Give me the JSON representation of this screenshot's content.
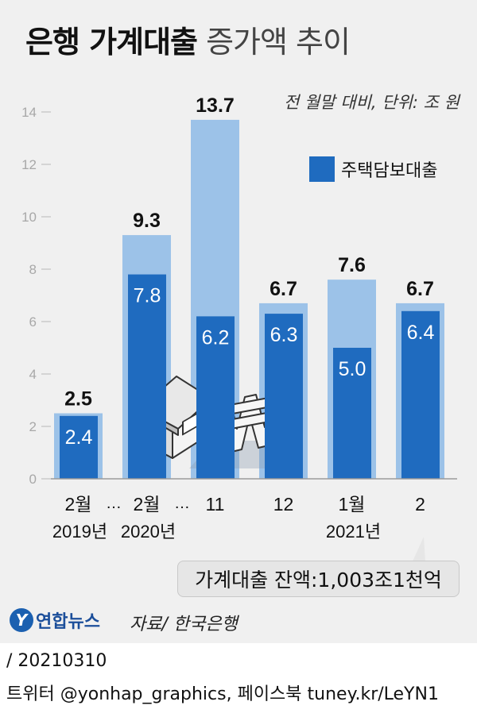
{
  "header": {
    "title_bold": "은행 가계대출",
    "title_light": "증가액 추이"
  },
  "unit_note": "전 월말 대비, 단위: 조 원",
  "legend": {
    "label": "주택담보대출"
  },
  "balance_note": "가계대출 잔액:1,003조1천억",
  "logo": {
    "mark": "Y",
    "text": "연합뉴스"
  },
  "source": "자료/ 한국은행",
  "footer": {
    "date_line": "/ 20210310",
    "social_line": "트위터 @yonhap_graphics, 페이스북 tuney.kr/LeYN1"
  },
  "colors": {
    "total": "#9cc2e8",
    "mortgage": "#1f6bbf",
    "panel": "#f0f0f0"
  },
  "chart_data": {
    "type": "bar",
    "categories": [
      "2월 2019년",
      "2월 2020년",
      "11",
      "12",
      "1월 2021년",
      "2"
    ],
    "category_lines": [
      [
        "2월",
        "2019년"
      ],
      [
        "2월",
        "2020년"
      ],
      [
        "11",
        ""
      ],
      [
        "12",
        ""
      ],
      [
        "1월",
        "2021년"
      ],
      [
        "2",
        ""
      ]
    ],
    "break_marks": [
      "…",
      "…"
    ],
    "series": [
      {
        "values": [
          2.5,
          9.3,
          13.7,
          6.7,
          7.6,
          6.7
        ]
      },
      {
        "name": "주택담보대출",
        "values": [
          2.4,
          7.8,
          6.2,
          6.3,
          5.0,
          6.4
        ]
      }
    ],
    "total_labels": [
      "2.5",
      "9.3",
      "13.7",
      "6.7",
      "7.6",
      "6.7"
    ],
    "mortgage_labels": [
      "2.4",
      "7.8",
      "6.2",
      "6.3",
      "5.0",
      "6.4"
    ],
    "yticks": [
      "0",
      "2",
      "4",
      "6",
      "8",
      "10",
      "12",
      "14"
    ],
    "ylim": [
      0,
      14
    ],
    "legend_position": "top-right",
    "grid": false
  }
}
